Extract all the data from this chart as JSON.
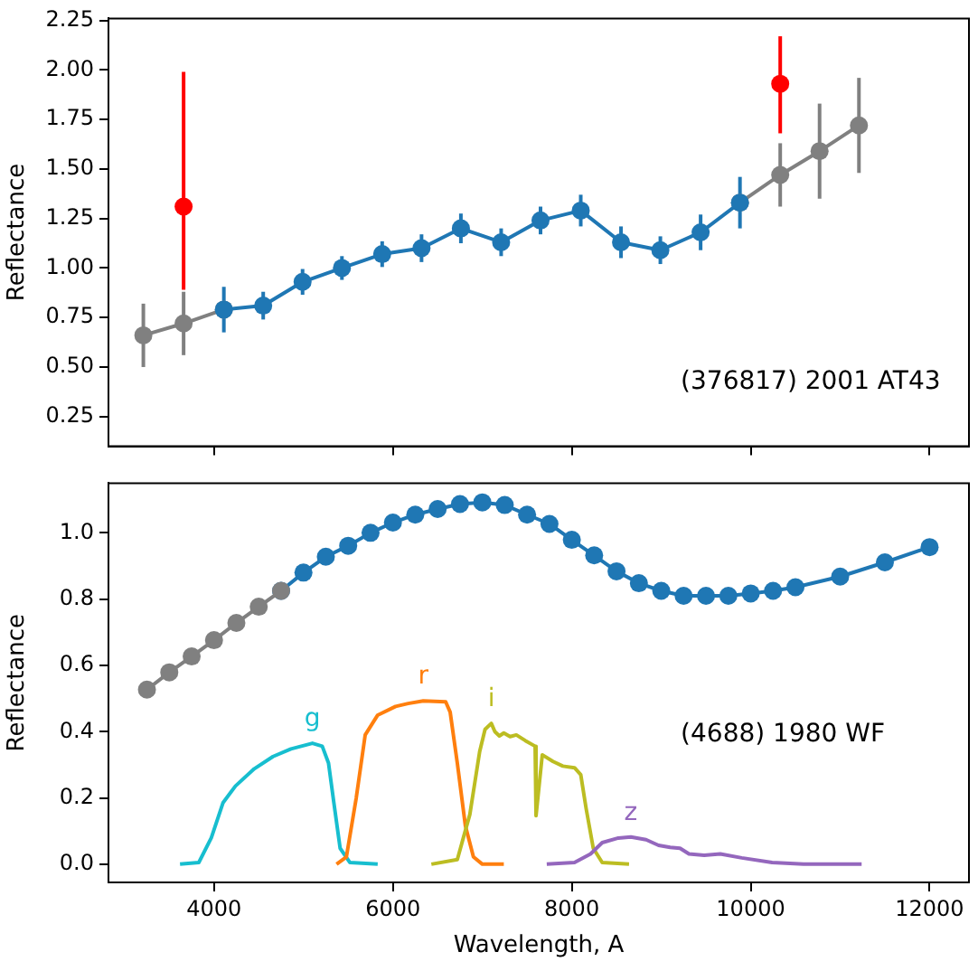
{
  "chart_data": [
    {
      "type": "line",
      "ylabel": "Reflectance",
      "xlim": [
        2820,
        12440
      ],
      "xticks": [
        4000,
        6000,
        8000,
        10000,
        12000
      ],
      "ylim": [
        0.1,
        2.26
      ],
      "yticks": [
        0.25,
        {
          "value": 0.5,
          "label": "0.50"
        },
        0.75,
        {
          "value": 1,
          "label": "1.00"
        },
        1.25,
        {
          "value": 1.5,
          "label": "1.50"
        },
        1.75,
        {
          "value": 2,
          "label": "2.00"
        },
        2.25
      ],
      "tick_labels": "y",
      "grid": false,
      "legend": false,
      "marker": "circle",
      "x": [
        3210,
        3660,
        4110,
        4550,
        4990,
        5430,
        5880,
        6320,
        6760,
        7210,
        7650,
        8100,
        8550,
        8990,
        9440,
        9880,
        10330,
        10770,
        11210
      ],
      "annotations": [
        "(376817) 2001 AT43"
      ],
      "series": [
        {
          "color": "#808080",
          "values": [
            0.66,
            0.72,
            0.79,
            null,
            null,
            null,
            null,
            null,
            null,
            null,
            null,
            null,
            null,
            null,
            null,
            1.33,
            1.47,
            1.59,
            1.72
          ],
          "errors": [
            0.16,
            0.16,
            null,
            null,
            null,
            null,
            null,
            null,
            null,
            null,
            null,
            null,
            null,
            null,
            null,
            null,
            0.16,
            0.24,
            0.24
          ]
        },
        {
          "color": "#1f77b4",
          "values": [
            null,
            null,
            0.79,
            0.81,
            0.93,
            1.0,
            1.07,
            1.1,
            1.2,
            1.13,
            1.24,
            1.29,
            1.13,
            1.09,
            1.18,
            1.33,
            null,
            null,
            null
          ],
          "errors": [
            null,
            null,
            0.115,
            0.07,
            0.065,
            0.06,
            0.065,
            0.07,
            0.075,
            0.07,
            0.07,
            0.08,
            0.08,
            0.07,
            0.09,
            0.13,
            null,
            null,
            null
          ]
        },
        {
          "type": "scatter",
          "color": "#ff0000",
          "values": [
            null,
            1.31,
            null,
            null,
            null,
            null,
            null,
            null,
            null,
            null,
            null,
            null,
            null,
            null,
            null,
            null,
            1.93,
            null,
            null
          ],
          "errors": [
            null,
            [
              0.89,
              1.99
            ],
            null,
            null,
            null,
            null,
            null,
            null,
            null,
            null,
            null,
            null,
            null,
            null,
            null,
            null,
            [
              1.68,
              2.17
            ],
            null,
            null
          ]
        }
      ]
    },
    {
      "type": "line",
      "xlabel": "Wavelength, A",
      "ylabel": "Reflectance",
      "xlim": [
        2820,
        12440
      ],
      "xticks": [
        4000,
        6000,
        8000,
        10000,
        12000
      ],
      "ylim": [
        -0.055,
        1.15
      ],
      "yticks": [
        {
          "value": 0,
          "label": "0.0"
        },
        0.2,
        0.4,
        0.6,
        0.8,
        {
          "value": 1,
          "label": "1.0"
        }
      ],
      "grid": false,
      "legend": false,
      "annotations": [
        "(4688) 1980 WF"
      ],
      "series": [
        {
          "color": "#1f77b4",
          "marker": "circle",
          "x": [
            4750,
            5000,
            5250,
            5500,
            5750,
            6000,
            6250,
            6500,
            6750,
            7000,
            7250,
            7500,
            7750,
            8000,
            8250,
            8500,
            8750,
            9000,
            9250,
            9500,
            9750,
            10000,
            10250,
            10500,
            11000,
            11500,
            12000
          ],
          "values": [
            0.825,
            0.88,
            0.928,
            0.961,
            1.0,
            1.031,
            1.055,
            1.072,
            1.087,
            1.092,
            1.084,
            1.055,
            1.027,
            0.979,
            0.932,
            0.884,
            0.848,
            0.825,
            0.81,
            0.81,
            0.81,
            0.817,
            0.825,
            0.836,
            0.868,
            0.911,
            0.957
          ]
        },
        {
          "color": "#808080",
          "marker": "circle",
          "x": [
            3250,
            3500,
            3750,
            4000,
            4250,
            4500,
            4750
          ],
          "values": [
            0.527,
            0.579,
            0.627,
            0.676,
            0.728,
            0.777,
            0.825
          ]
        },
        {
          "name": "g",
          "color": "#17becf",
          "marker": "none",
          "x": [
            3620,
            3830,
            3970,
            4100,
            4240,
            4450,
            4660,
            4860,
            5100,
            5210,
            5280,
            5340,
            5410,
            5520,
            5830
          ],
          "values": [
            0,
            0.005,
            0.08,
            0.185,
            0.236,
            0.288,
            0.325,
            0.348,
            0.365,
            0.356,
            0.305,
            0.185,
            0.048,
            0.005,
            0
          ]
        },
        {
          "name": "r",
          "color": "#ff7f0e",
          "marker": "none",
          "x": [
            5370,
            5480,
            5590,
            5690,
            5830,
            6030,
            6170,
            6340,
            6590,
            6640,
            6720,
            6810,
            6900,
            7000,
            7240
          ],
          "values": [
            0,
            0.022,
            0.2,
            0.39,
            0.45,
            0.476,
            0.485,
            0.493,
            0.49,
            0.459,
            0.305,
            0.116,
            0.022,
            0,
            0
          ]
        },
        {
          "name": "i",
          "color": "#bcbd22",
          "marker": "none",
          "x": [
            6430,
            6720,
            6860,
            6970,
            7030,
            7100,
            7140,
            7190,
            7240,
            7310,
            7380,
            7480,
            7590,
            7600,
            7670,
            7790,
            7900,
            8030,
            8100,
            8160,
            8240,
            8340,
            8640
          ],
          "values": [
            0,
            0.014,
            0.15,
            0.34,
            0.407,
            0.425,
            0.4,
            0.387,
            0.396,
            0.385,
            0.39,
            0.373,
            0.356,
            0.146,
            0.33,
            0.31,
            0.296,
            0.291,
            0.27,
            0.168,
            0.048,
            0.005,
            0
          ]
        },
        {
          "name": "z",
          "color": "#9467bd",
          "marker": "none",
          "x": [
            7720,
            8030,
            8210,
            8340,
            8520,
            8660,
            8830,
            8970,
            9100,
            9210,
            9310,
            9480,
            9660,
            9900,
            10240,
            10590,
            11240
          ],
          "values": [
            0,
            0.005,
            0.031,
            0.065,
            0.079,
            0.082,
            0.074,
            0.057,
            0.051,
            0.048,
            0.031,
            0.027,
            0.031,
            0.019,
            0.005,
            0,
            0
          ]
        }
      ]
    }
  ]
}
